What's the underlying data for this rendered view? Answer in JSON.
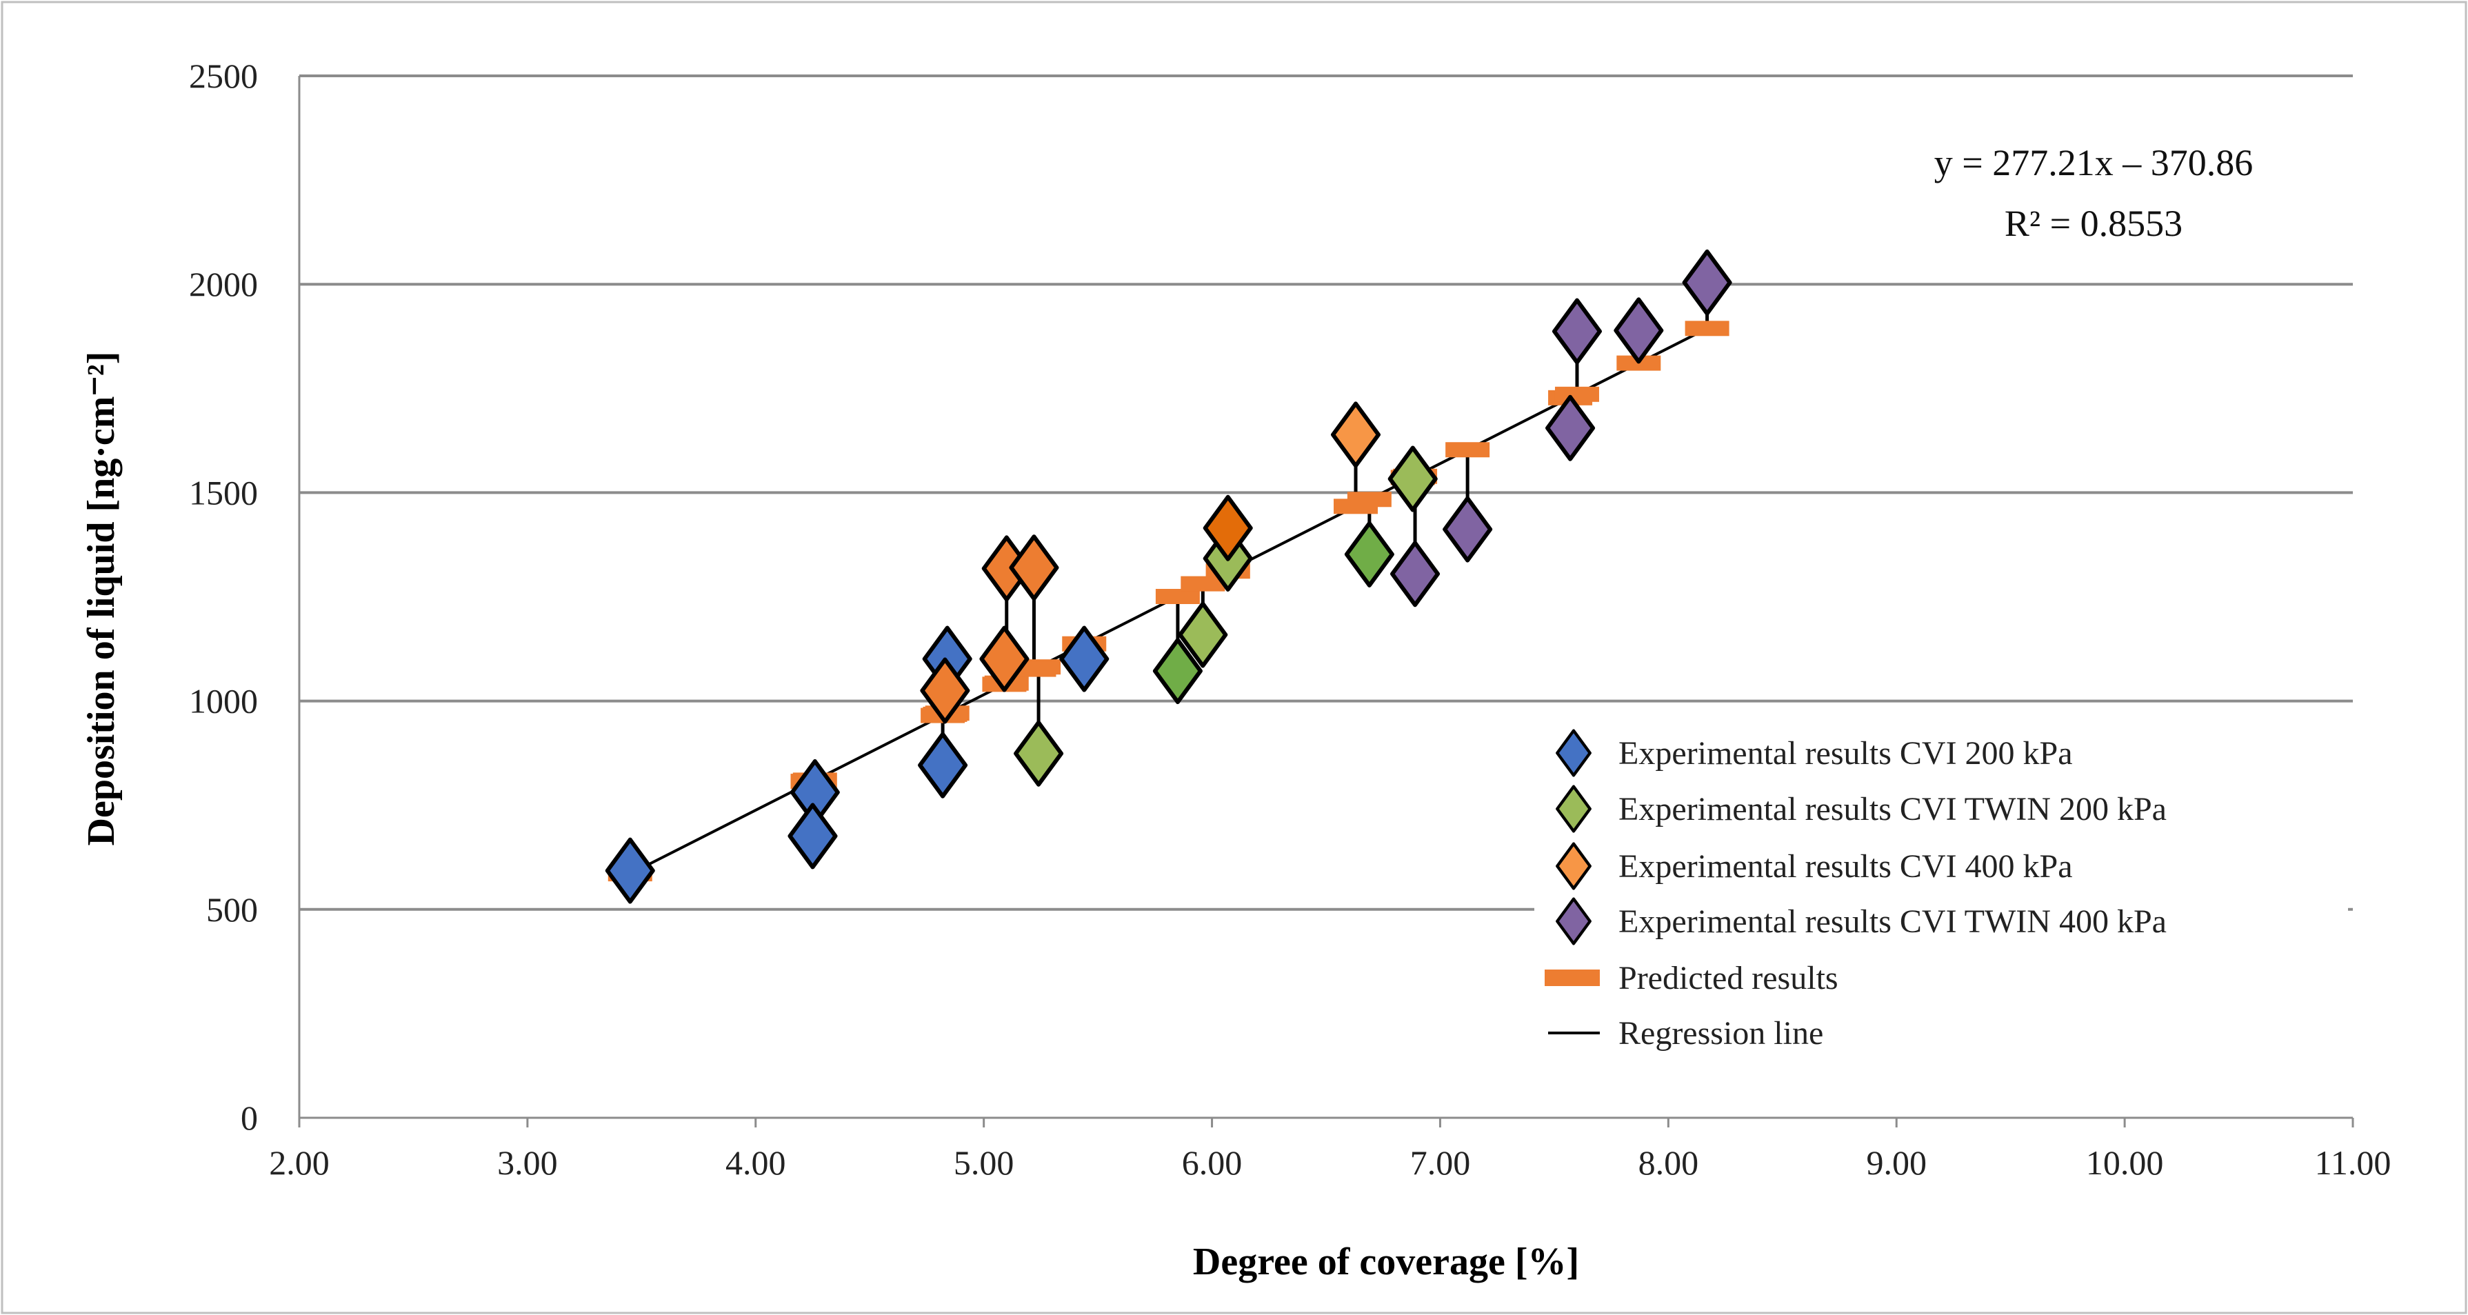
{
  "chart_data": {
    "type": "scatter",
    "title": "",
    "xlabel": "Degree of coverage [%]",
    "ylabel": "Deposition of liquid [ng·cm⁻²]",
    "xlim": [
      2,
      11
    ],
    "ylim": [
      0,
      2500
    ],
    "xticks": [
      "2.00",
      "3.00",
      "4.00",
      "5.00",
      "6.00",
      "7.00",
      "8.00",
      "9.00",
      "10.00",
      "11.00"
    ],
    "yticks": [
      "0",
      "500",
      "1000",
      "1500",
      "2000",
      "2500"
    ],
    "grid": "horizontal",
    "legend_position": "bottom-right",
    "regression": {
      "slope": 277.21,
      "intercept": -370.86,
      "x_range": [
        3.45,
        8.17
      ],
      "equation": "y = 277.21x – 370.86",
      "r2": "R² = 0.8553"
    },
    "series": [
      {
        "name": "Experimental results CVI 200 kPa",
        "color": "#4472C4",
        "points": [
          [
            3.45,
            593,
            "#4472C4"
          ],
          [
            4.26,
            781,
            "#4472C4"
          ],
          [
            4.25,
            676,
            "#4472C4"
          ],
          [
            4.84,
            1101,
            "#4472C4"
          ],
          [
            4.82,
            846,
            "#4472C4"
          ],
          [
            5.44,
            1101,
            "#4472C4"
          ]
        ]
      },
      {
        "name": "Experimental results CVI TWIN 200 kPa",
        "color": "#9BBB59",
        "points": [
          [
            5.24,
            874,
            "#9BBB59"
          ],
          [
            5.85,
            1072,
            "#70AD47"
          ],
          [
            5.96,
            1159,
            "#9BBB59"
          ],
          [
            6.07,
            1342,
            "#9BBB59"
          ],
          [
            6.69,
            1352,
            "#70AD47"
          ],
          [
            6.88,
            1533,
            "#9BBB59"
          ]
        ]
      },
      {
        "name": "Experimental results CVI 400 kPa",
        "color": "#F79646",
        "points": [
          [
            4.83,
            1025,
            "#ED7D31"
          ],
          [
            5.1,
            1318,
            "#ED7D31"
          ],
          [
            5.22,
            1320,
            "#ED7D31"
          ],
          [
            5.09,
            1101,
            "#ED7D31"
          ],
          [
            6.07,
            1415,
            "#E36C09"
          ],
          [
            6.63,
            1639,
            "#F79646"
          ]
        ]
      },
      {
        "name": "Experimental results CVI TWIN 400 kPa",
        "color": "#8064A2",
        "points": [
          [
            6.89,
            1305,
            "#8064A2"
          ],
          [
            7.12,
            1412,
            "#8064A2"
          ],
          [
            7.57,
            1655,
            "#8064A2"
          ],
          [
            7.6,
            1887,
            "#8064A2"
          ],
          [
            7.87,
            1889,
            "#8064A2"
          ],
          [
            8.17,
            2004,
            "#8064A2"
          ]
        ]
      }
    ],
    "predicted": {
      "name": "Predicted results",
      "color": "#ED7D31"
    },
    "regression_legend": "Regression line"
  }
}
